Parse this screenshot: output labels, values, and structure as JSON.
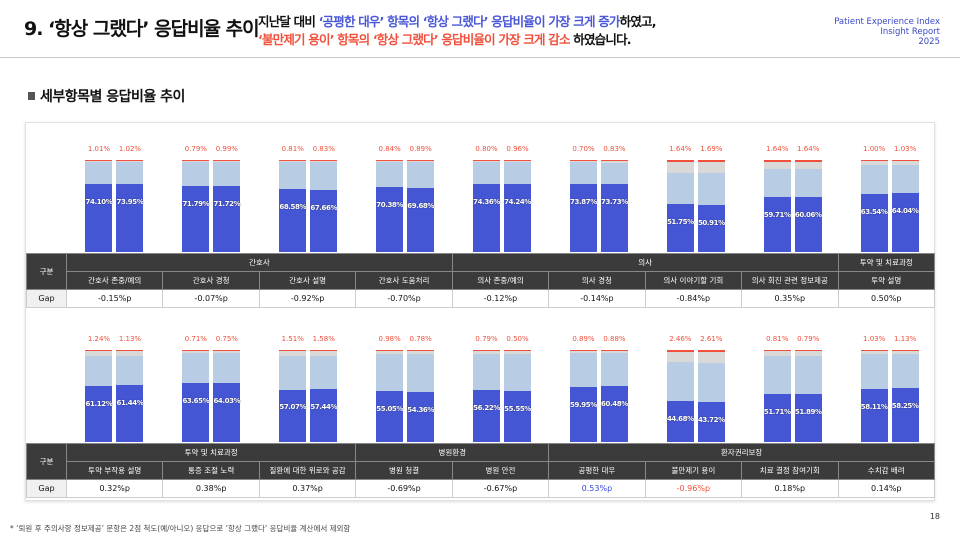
{
  "header": {
    "title": "9. ‘항상 그랬다’ 응답비율 추이",
    "desc1_a": "지난달 대비 ",
    "desc1_b": "‘공평한 대우’ 항목의 ‘항상 그랬다’ 응답비율이 가장 크게 증가",
    "desc1_c": "하였고,",
    "desc2_a": "‘불만제기 용이’ 항목의 ‘항상 그랬다’ 응답비율이 가장 크게 감소",
    "desc2_b": " 하였습니다.",
    "brand": [
      "Patient Experience Index",
      "Insight Report",
      "2025"
    ]
  },
  "subtitle": "세부항목별 응답비율 추이",
  "colors": {
    "always": "#4456d4",
    "usually": "#b8cce4",
    "sometimes": "#d9d9d9",
    "never": "#f0503c"
  },
  "sections": [
    {
      "row_header": "구분",
      "gap_label": "Gap",
      "groups": [
        {
          "label": "간호사",
          "span": 4
        },
        {
          "label": "의사",
          "span": 4
        },
        {
          "label": "투약 및 치료과정",
          "span": 1
        }
      ],
      "items": [
        {
          "label": "간호사 존중/예의",
          "gap": "-0.15%p",
          "bars": [
            {
              "always": 74.1,
              "never": 1.01,
              "sometimes": 1.5
            },
            {
              "always": 73.95,
              "never": 1.02,
              "sometimes": 1.5
            }
          ]
        },
        {
          "label": "간호사 경청",
          "gap": "-0.07%p",
          "bars": [
            {
              "always": 71.79,
              "never": 0.79,
              "sometimes": 1.5
            },
            {
              "always": 71.72,
              "never": 0.99,
              "sometimes": 1.5
            }
          ]
        },
        {
          "label": "간호사 설명",
          "gap": "-0.92%p",
          "bars": [
            {
              "always": 68.58,
              "never": 0.81,
              "sometimes": 1.5
            },
            {
              "always": 67.66,
              "never": 0.83,
              "sometimes": 1.5
            }
          ]
        },
        {
          "label": "간호사 도움처리",
          "gap": "-0.70%p",
          "bars": [
            {
              "always": 70.38,
              "never": 0.84,
              "sometimes": 1.5
            },
            {
              "always": 69.68,
              "never": 0.89,
              "sometimes": 1.5
            }
          ]
        },
        {
          "label": "의사 존중/예의",
          "gap": "-0.12%p",
          "bars": [
            {
              "always": 74.36,
              "never": 0.8,
              "sometimes": 1.2
            },
            {
              "always": 74.24,
              "never": 0.96,
              "sometimes": 1.2
            }
          ]
        },
        {
          "label": "의사 경청",
          "gap": "-0.14%p",
          "bars": [
            {
              "always": 73.87,
              "never": 0.7,
              "sometimes": 1.5
            },
            {
              "always": 73.73,
              "never": 0.83,
              "sometimes": 2.5
            }
          ]
        },
        {
          "label": "의사 이야기할 기회",
          "gap": "-0.84%p",
          "bars": [
            {
              "always": 51.75,
              "never": 1.64,
              "sometimes": 12
            },
            {
              "always": 50.91,
              "never": 1.69,
              "sometimes": 12
            }
          ]
        },
        {
          "label": "의사 회진 관련 정보제공",
          "gap": "0.35%p",
          "bars": [
            {
              "always": 59.71,
              "never": 1.64,
              "sometimes": 8
            },
            {
              "always": 60.06,
              "never": 1.64,
              "sometimes": 8
            }
          ]
        },
        {
          "label": "투약 설명",
          "gap": "0.50%p",
          "bars": [
            {
              "always": 63.54,
              "never": 1.0,
              "sometimes": 4
            },
            {
              "always": 64.04,
              "never": 1.03,
              "sometimes": 4
            }
          ]
        }
      ]
    },
    {
      "row_header": "구분",
      "gap_label": "Gap",
      "groups": [
        {
          "label": "투약 및 치료과정",
          "span": 3
        },
        {
          "label": "병원환경",
          "span": 2
        },
        {
          "label": "환자권리보장",
          "span": 4
        }
      ],
      "items": [
        {
          "label": "투약 부작용 설명",
          "gap": "0.32%p",
          "bars": [
            {
              "always": 61.12,
              "never": 1.24,
              "sometimes": 5
            },
            {
              "always": 61.44,
              "never": 1.13,
              "sometimes": 5
            }
          ]
        },
        {
          "label": "통증 조절 노력",
          "gap": "0.38%p",
          "bars": [
            {
              "always": 63.65,
              "never": 0.71,
              "sometimes": 2
            },
            {
              "always": 64.03,
              "never": 0.75,
              "sometimes": 2.5
            }
          ]
        },
        {
          "label": "질환에 대한 위로와 공감",
          "gap": "0.37%p",
          "bars": [
            {
              "always": 57.07,
              "never": 1.51,
              "sometimes": 5
            },
            {
              "always": 57.44,
              "never": 1.58,
              "sometimes": 5
            }
          ]
        },
        {
          "label": "병원 청결",
          "gap": "-0.69%p",
          "bars": [
            {
              "always": 55.05,
              "never": 0.98,
              "sometimes": 3.5
            },
            {
              "always": 54.36,
              "never": 0.78,
              "sometimes": 4
            }
          ]
        },
        {
          "label": "병원 안전",
          "gap": "-0.67%p",
          "bars": [
            {
              "always": 56.22,
              "never": 0.79,
              "sometimes": 3
            },
            {
              "always": 55.55,
              "never": 0.5,
              "sometimes": 3.5
            }
          ]
        },
        {
          "label": "공평한 대우",
          "gap": "0.53%p",
          "gap_color": "#3a48d8",
          "bars": [
            {
              "always": 59.95,
              "never": 0.89,
              "sometimes": 2
            },
            {
              "always": 60.48,
              "never": 0.88,
              "sometimes": 2
            }
          ]
        },
        {
          "label": "불만제기 용이",
          "gap": "-0.96%p",
          "gap_color": "#f0503c",
          "bars": [
            {
              "always": 44.68,
              "never": 2.46,
              "sometimes": 11
            },
            {
              "always": 43.72,
              "never": 2.61,
              "sometimes": 11
            }
          ]
        },
        {
          "label": "치료 결정 참여기회",
          "gap": "0.18%p",
          "bars": [
            {
              "always": 51.71,
              "never": 0.81,
              "sometimes": 6
            },
            {
              "always": 51.89,
              "never": 0.79,
              "sometimes": 6
            }
          ]
        },
        {
          "label": "수치감 배려",
          "gap": "0.14%p",
          "bars": [
            {
              "always": 58.11,
              "never": 1.03,
              "sometimes": 3
            },
            {
              "always": 58.25,
              "never": 1.13,
              "sometimes": 3
            }
          ]
        }
      ]
    }
  ],
  "footnote": "* ‘퇴원 후 주의사항 정보제공’ 문항은 2점 척도(예/아니오) 응답으로 ‘항상 그랬다’ 응답비율 계산에서 제외함",
  "page": "18"
}
